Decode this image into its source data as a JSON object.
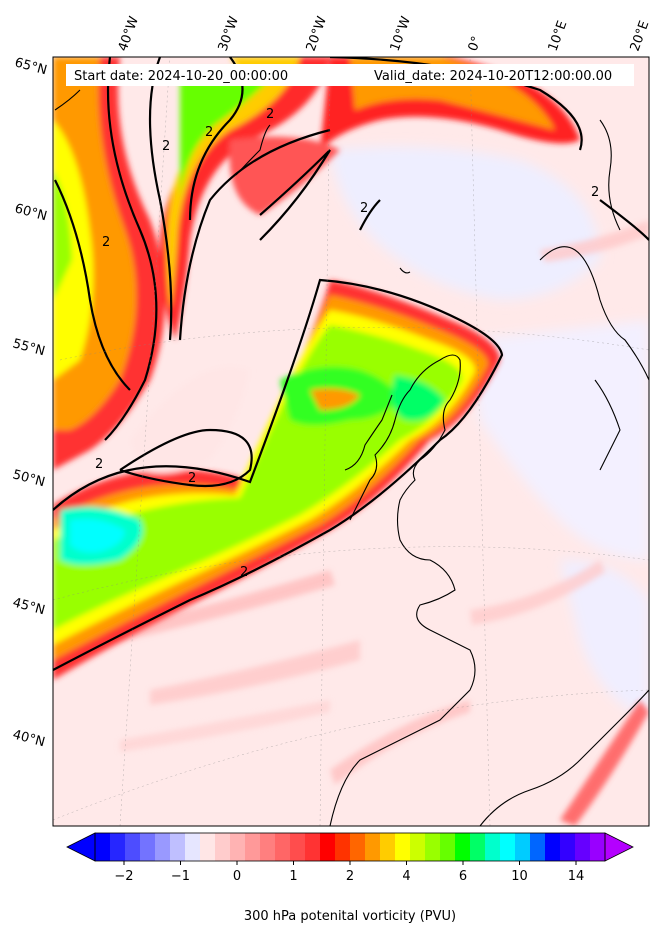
{
  "header": {
    "start_date": "Start date: 2024-10-20_00:00:00",
    "valid_date": "Valid_date: 2024-10-20T12:00:00.00"
  },
  "lon_labels": [
    "40°W",
    "30°W",
    "20°W",
    "10°W",
    "0°",
    "10°E",
    "20°E"
  ],
  "lat_labels": [
    "65°N",
    "60°N",
    "55°N",
    "50°N",
    "45°N",
    "40°N"
  ],
  "contour_label": "2",
  "colorbar": {
    "label": "300 hPa potenital vorticity (PVU)",
    "tick_labels": [
      "−2",
      "−1",
      "0",
      "1",
      "2",
      "4",
      "6",
      "10",
      "14"
    ],
    "colors": [
      "#0000ff",
      "#2626ff",
      "#4d4dff",
      "#7373ff",
      "#9999ff",
      "#bfbfff",
      "#e6e6ff",
      "#ffe6e6",
      "#ffcccc",
      "#ffb3b3",
      "#ff9999",
      "#ff7f7f",
      "#ff6666",
      "#ff4d4d",
      "#ff3333",
      "#ff0000",
      "#ff3300",
      "#ff6600",
      "#ff9900",
      "#ffcc00",
      "#ffff00",
      "#ccff00",
      "#99ff00",
      "#66ff00",
      "#00ff00",
      "#00ff66",
      "#00ffcc",
      "#00ffff",
      "#00ccff",
      "#0066ff",
      "#0000ff",
      "#3300ff",
      "#6600ff",
      "#9900ff"
    ],
    "under_color": "#0000ff",
    "over_color": "#b400ff"
  }
}
